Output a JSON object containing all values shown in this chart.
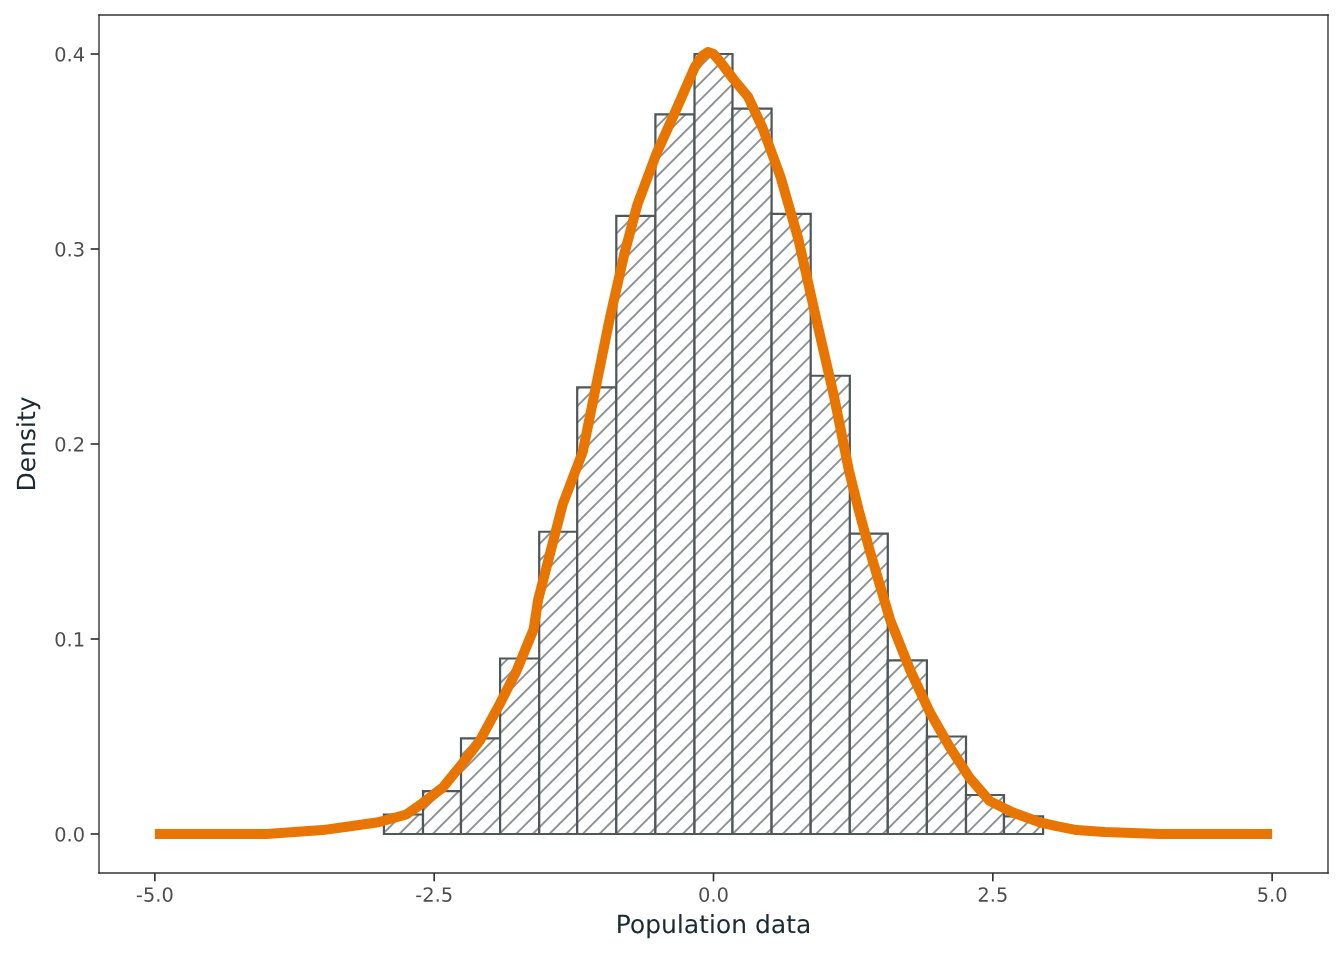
{
  "chart_data": {
    "type": "histogram",
    "xlabel": "Population data",
    "ylabel": "Density",
    "series": [
      {
        "color": "#4f575a",
        "bins": [
          -2.95,
          -2.6,
          -2.26,
          -1.91,
          -1.56,
          -1.22,
          -0.87,
          -0.52,
          -0.17,
          0.17,
          0.52,
          0.87,
          1.22,
          1.56,
          1.91,
          2.26,
          2.6,
          2.95
        ],
        "values": [
          0.01,
          0.022,
          0.049,
          0.09,
          0.155,
          0.229,
          0.317,
          0.369,
          0.4,
          0.372,
          0.318,
          0.235,
          0.154,
          0.089,
          0.05,
          0.02,
          0.009
        ]
      },
      {
        "type": "line",
        "color": "#e87500",
        "x": [
          -5,
          -4.5,
          -4,
          -3.5,
          -3.25,
          -3.0,
          -2.75,
          -2.6,
          -2.42,
          -2.25,
          -2.09,
          -1.91,
          -1.76,
          -1.61,
          -1.57,
          -1.35,
          -1.17,
          -1.04,
          -0.93,
          -0.8,
          -0.68,
          -0.51,
          -0.33,
          -0.17,
          -0.1,
          -0.05,
          0.0,
          0.06,
          0.18,
          0.31,
          0.44,
          0.6,
          0.76,
          0.92,
          1.08,
          1.21,
          1.3,
          1.4,
          1.58,
          1.76,
          1.94,
          2.11,
          2.29,
          2.47,
          2.68,
          2.92,
          3.07,
          3.25,
          3.5,
          4.0,
          5.0
        ],
        "values": [
          0,
          0,
          0,
          0.002,
          0.004,
          0.006,
          0.01,
          0.016,
          0.024,
          0.036,
          0.048,
          0.067,
          0.084,
          0.105,
          0.12,
          0.169,
          0.196,
          0.233,
          0.264,
          0.297,
          0.323,
          0.349,
          0.372,
          0.393,
          0.399,
          0.401,
          0.4,
          0.396,
          0.387,
          0.378,
          0.362,
          0.337,
          0.305,
          0.264,
          0.224,
          0.187,
          0.166,
          0.145,
          0.11,
          0.084,
          0.062,
          0.045,
          0.029,
          0.017,
          0.011,
          0.006,
          0.004,
          0.002,
          0.001,
          0,
          0
        ]
      }
    ],
    "xlim": [
      -5.5,
      5.5
    ],
    "ylim": [
      -0.02,
      0.42
    ],
    "xticks": [
      {
        "value": -5,
        "label": "-5.0"
      },
      {
        "value": -2.5,
        "label": "-2.5"
      },
      {
        "value": 0,
        "label": "0.0"
      },
      {
        "value": 2.5,
        "label": "2.5"
      },
      {
        "value": 5,
        "label": "5.0"
      }
    ],
    "yticks": [
      {
        "value": 0,
        "label": "0.0"
      },
      {
        "value": 0.1,
        "label": "0.1"
      },
      {
        "value": 0.2,
        "label": "0.2"
      },
      {
        "value": 0.3,
        "label": "0.3"
      },
      {
        "value": 0.4,
        "label": "0.4"
      }
    ],
    "grid": false
  }
}
